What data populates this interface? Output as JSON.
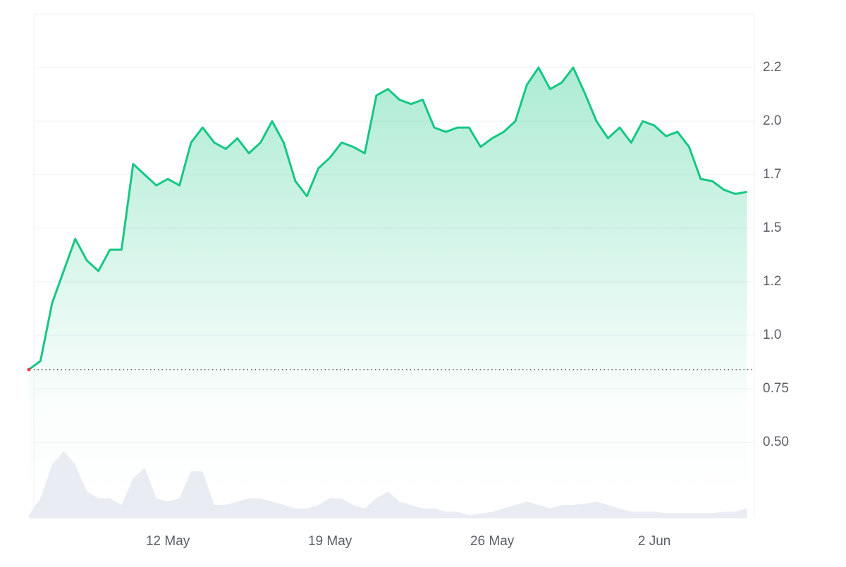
{
  "chart_data": {
    "type": "line",
    "categories": [
      null,
      null,
      null,
      null,
      null,
      null,
      null,
      null,
      null,
      null,
      null,
      null,
      "12 May",
      null,
      null,
      null,
      null,
      null,
      null,
      null,
      null,
      null,
      null,
      null,
      null,
      null,
      "19 May",
      null,
      null,
      null,
      null,
      null,
      null,
      null,
      null,
      null,
      null,
      null,
      null,
      null,
      "26 May",
      null,
      null,
      null,
      null,
      null,
      null,
      null,
      null,
      null,
      null,
      null,
      null,
      null,
      "2 Jun",
      null,
      null,
      null,
      null,
      null,
      null,
      null,
      null
    ],
    "series": [
      {
        "color": "#16c784",
        "values": [
          0.84,
          0.88,
          1.15,
          1.3,
          1.45,
          1.35,
          1.3,
          1.4,
          1.4,
          1.8,
          1.75,
          1.7,
          1.73,
          1.7,
          1.9,
          1.97,
          1.9,
          1.87,
          1.92,
          1.85,
          1.9,
          2.0,
          1.9,
          1.72,
          1.65,
          1.78,
          1.83,
          1.9,
          1.88,
          1.85,
          2.12,
          2.15,
          2.1,
          2.08,
          2.1,
          1.97,
          1.95,
          1.97,
          1.97,
          1.88,
          1.92,
          1.95,
          2.0,
          2.17,
          2.25,
          2.15,
          2.18,
          2.25,
          2.13,
          2.0,
          1.92,
          1.97,
          1.9,
          2.0,
          1.98,
          1.93,
          1.95,
          1.88,
          1.73,
          1.72,
          1.68,
          1.66,
          1.67
        ]
      },
      {
        "color": "#e9ecf2",
        "axis": "y2",
        "values": [
          0.05,
          0.3,
          0.8,
          1.0,
          0.8,
          0.4,
          0.3,
          0.3,
          0.2,
          0.6,
          0.75,
          0.3,
          0.25,
          0.3,
          0.7,
          0.7,
          0.2,
          0.2,
          0.25,
          0.3,
          0.3,
          0.25,
          0.2,
          0.15,
          0.15,
          0.2,
          0.3,
          0.3,
          0.2,
          0.15,
          0.3,
          0.4,
          0.25,
          0.2,
          0.15,
          0.15,
          0.1,
          0.1,
          0.05,
          0.07,
          0.1,
          0.15,
          0.2,
          0.25,
          0.2,
          0.15,
          0.2,
          0.2,
          0.22,
          0.25,
          0.2,
          0.15,
          0.1,
          0.1,
          0.1,
          0.08,
          0.08,
          0.08,
          0.08,
          0.08,
          0.1,
          0.1,
          0.15
        ]
      }
    ],
    "ylim": [
      0.145,
      2.5
    ],
    "yticks": [
      {
        "value": 0.5,
        "label": "0.50"
      },
      0.75,
      {
        "value": 1.0,
        "label": "1.0"
      },
      {
        "value": 1.25,
        "label": "1.2"
      },
      1.5,
      {
        "value": 1.75,
        "label": "1.7"
      },
      {
        "value": 2.0,
        "label": "2.0"
      },
      {
        "value": 2.25,
        "label": "2.2"
      }
    ],
    "y2lim": [
      0,
      7.5
    ],
    "grid": true
  }
}
